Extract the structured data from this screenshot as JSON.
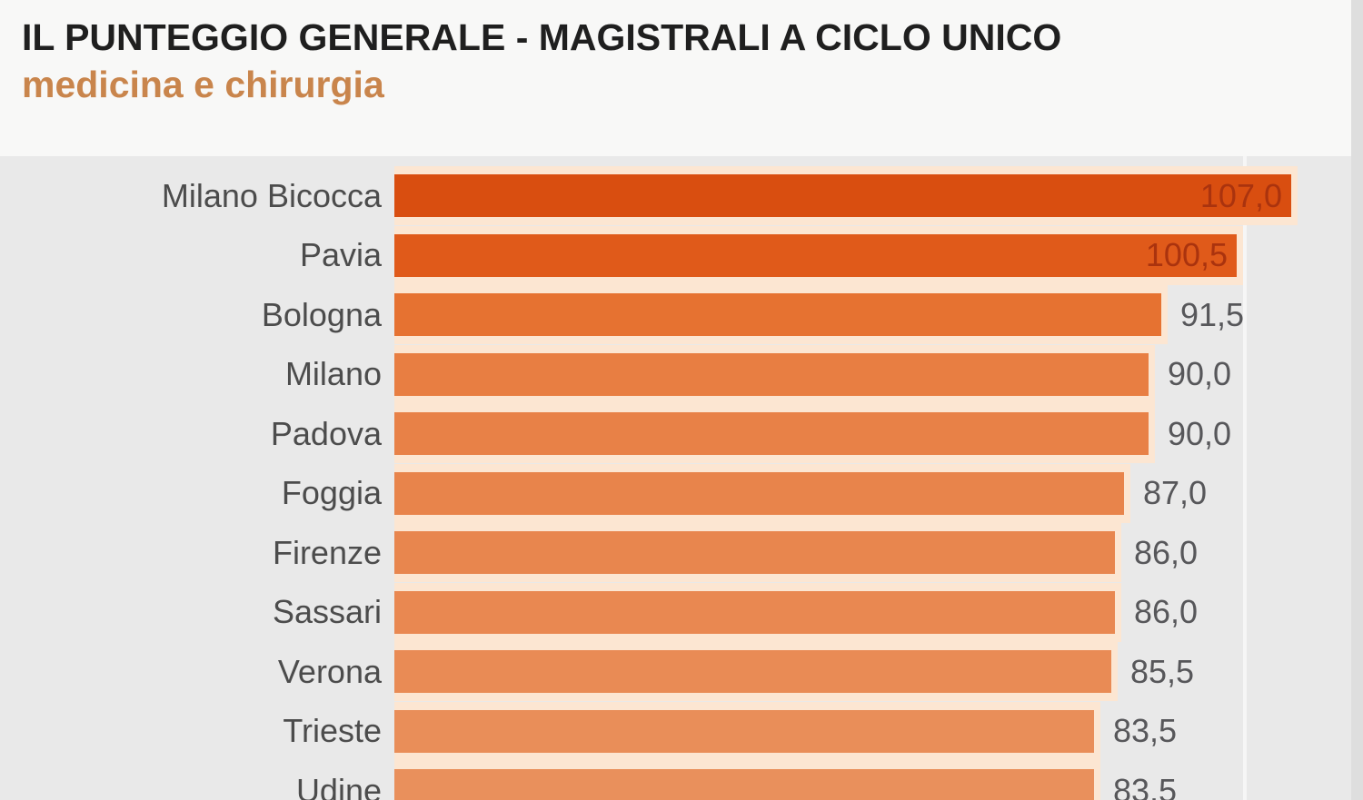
{
  "header": {
    "title": "IL PUNTEGGIO GENERALE - MAGISTRALI A CICLO UNICO",
    "subtitle": "medicina e chirurgia"
  },
  "chart_data": {
    "type": "bar",
    "orientation": "horizontal",
    "title": "IL PUNTEGGIO GENERALE - MAGISTRALI A CICLO UNICO",
    "subtitle": "medicina e chirurgia",
    "categories": [
      "Milano Bicocca",
      "Pavia",
      "Bologna",
      "Milano",
      "Padova",
      "Foggia",
      "Firenze",
      "Sassari",
      "Verona",
      "Trieste",
      "Udine"
    ],
    "values": [
      107.0,
      100.5,
      91.5,
      90.0,
      90.0,
      87.0,
      86.0,
      86.0,
      85.5,
      83.5,
      83.5
    ],
    "value_labels": [
      "107,0",
      "100,5",
      "91,5",
      "90,0",
      "90,0",
      "87,0",
      "86,0",
      "86,0",
      "85,5",
      "83,5",
      "83,5"
    ],
    "value_label_inside": [
      true,
      true,
      false,
      false,
      false,
      false,
      false,
      false,
      false,
      false,
      false
    ],
    "bar_colors": [
      "#d94e10",
      "#e05a1a",
      "#e67231",
      "#e87e42",
      "#e88147",
      "#e8844b",
      "#e8864e",
      "#e98851",
      "#e98b55",
      "#e98e59",
      "#e9905c"
    ],
    "xlim": [
      0,
      107
    ],
    "grid": "single vertical light line near right side",
    "legend": "none",
    "colors": {
      "value_inside_text": "#aa330e",
      "value_outside_text": "#57575a",
      "category_label_text": "#4c4c4c",
      "bar_separator": "#fce6d2",
      "header_background": "#f8f8f7",
      "chart_background": "#e9e9e9",
      "title_text": "#1f1f1f",
      "subtitle_text": "#c9854c"
    }
  }
}
